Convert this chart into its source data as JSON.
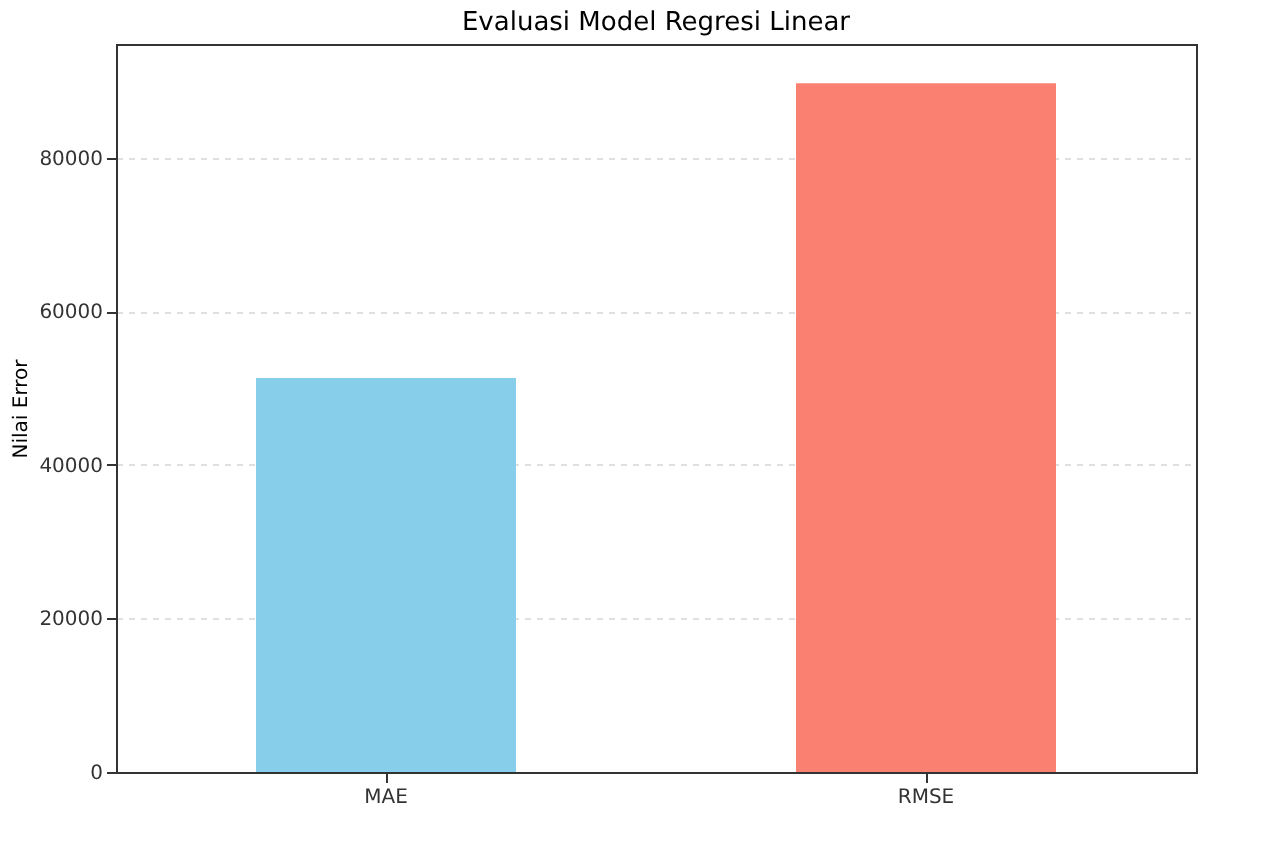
{
  "chart_data": {
    "type": "bar",
    "title": "Evaluasi Model Regresi Linear",
    "ylabel": "Nilai Error",
    "categories": [
      "MAE",
      "RMSE"
    ],
    "values": [
      51300,
      89700
    ],
    "colors": [
      "#87ceeb",
      "#fa8072"
    ],
    "ylim": [
      0,
      94800
    ],
    "yticks": [
      0,
      20000,
      40000,
      60000,
      80000
    ],
    "grid": "y"
  }
}
